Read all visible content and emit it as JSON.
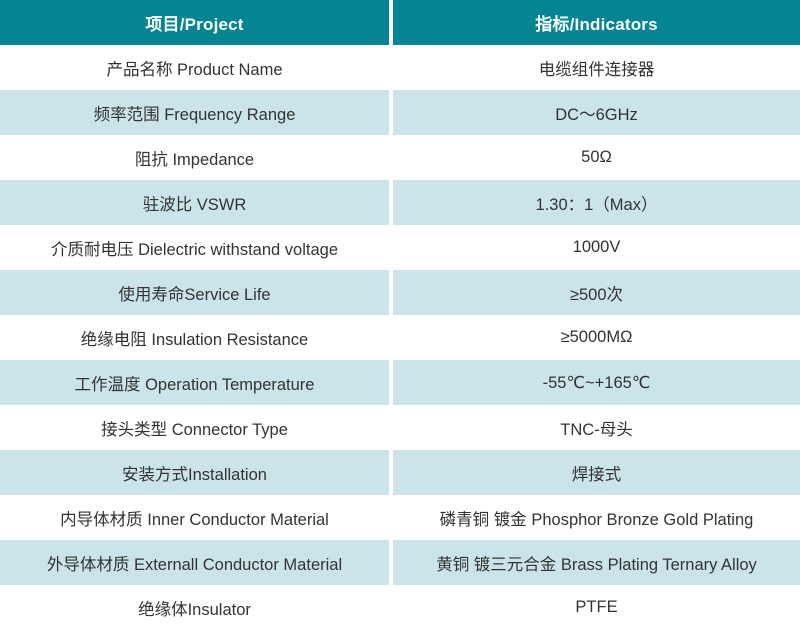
{
  "header": {
    "project": "项目/Project",
    "indicators": "指标/Indicators"
  },
  "rows": [
    {
      "project": "产品名称 Product Name",
      "indicator": "电缆组件连接器"
    },
    {
      "project": "频率范围 Frequency Range",
      "indicator": "DC～6GHz"
    },
    {
      "project": "阻抗 Impedance",
      "indicator": "50Ω"
    },
    {
      "project": "驻波比 VSWR",
      "indicator": "1.30：1（Max）"
    },
    {
      "project": "介质耐电压 Dielectric withstand voltage",
      "indicator": "1000V"
    },
    {
      "project": "使用寿命Service Life",
      "indicator": "≥500次"
    },
    {
      "project": "绝缘电阻 Insulation Resistance",
      "indicator": "≥5000MΩ"
    },
    {
      "project": "工作温度 Operation Temperature",
      "indicator": "-55℃~+165℃"
    },
    {
      "project": "接头类型 Connector Type",
      "indicator": "TNC-母头"
    },
    {
      "project": "安装方式Installation",
      "indicator": "焊接式"
    },
    {
      "project": "内导体材质 Inner Conductor Material",
      "indicator": "磷青铜 镀金 Phosphor Bronze Gold Plating"
    },
    {
      "project": "外导体材质 Externall Conductor Material",
      "indicator": "黄铜 镀三元合金 Brass Plating Ternary Alloy"
    },
    {
      "project": "绝缘体Insulator",
      "indicator": "PTFE"
    }
  ],
  "colors": {
    "header_bg": "#058594",
    "header_text": "#ffffff",
    "row_bg": "#ffffff",
    "row_alt_bg": "#cbe4e9",
    "text": "#333333",
    "divider": "#ffffff"
  }
}
